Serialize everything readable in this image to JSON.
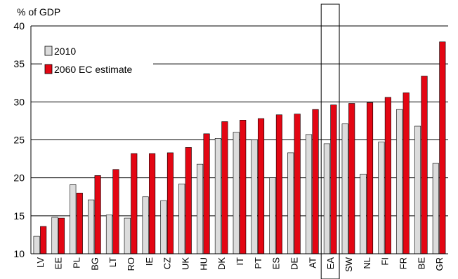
{
  "chart_data": {
    "type": "bar",
    "unit_label": "% of GDP",
    "categories": [
      "LV",
      "EE",
      "PL",
      "BG",
      "LT",
      "RO",
      "IE",
      "CZ",
      "UK",
      "HU",
      "DK",
      "IT",
      "PT",
      "ES",
      "DE",
      "AT",
      "EA",
      "SW",
      "NL",
      "FI",
      "FR",
      "BE",
      "GR"
    ],
    "series": [
      {
        "name": "2010",
        "color": "#dcdcdc",
        "values": [
          12.3,
          14.8,
          19.1,
          17.1,
          15.1,
          14.7,
          17.5,
          17.0,
          19.2,
          21.8,
          25.2,
          26.0,
          25.0,
          20.0,
          23.3,
          25.7,
          24.5,
          27.1,
          20.5,
          24.7,
          29.0,
          26.8,
          21.9
        ]
      },
      {
        "name": "2060 EC estimate",
        "color": "#e30613",
        "values": [
          13.6,
          14.7,
          18.0,
          20.3,
          21.1,
          23.2,
          23.2,
          23.3,
          24.0,
          25.8,
          27.4,
          27.6,
          27.8,
          28.3,
          28.4,
          29.0,
          29.6,
          29.8,
          29.9,
          30.6,
          31.2,
          33.4,
          37.9
        ]
      }
    ],
    "highlighted_category": "EA",
    "ylim": [
      10,
      40
    ],
    "yticks": [
      10,
      15,
      20,
      25,
      30,
      35,
      40
    ],
    "grid": true,
    "legend_position": "top-left"
  }
}
